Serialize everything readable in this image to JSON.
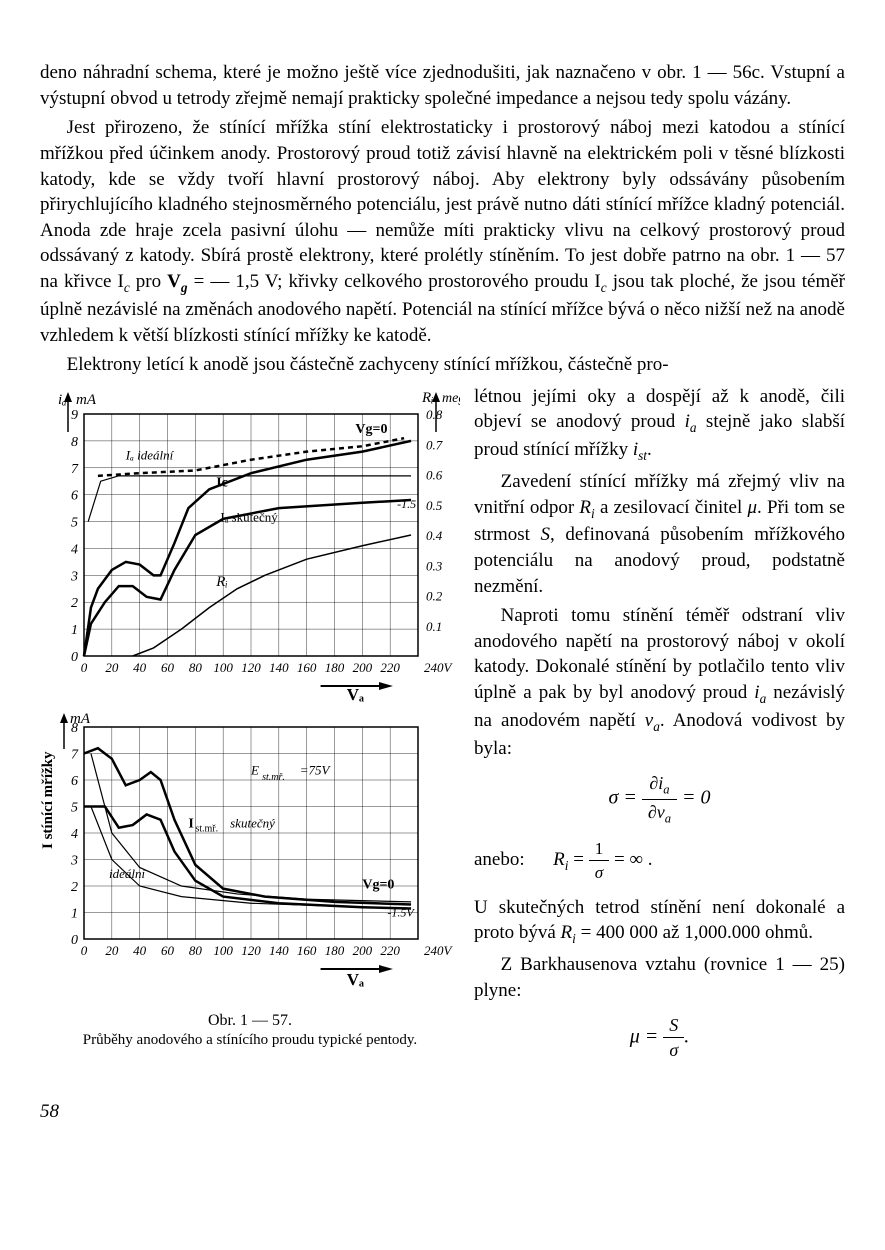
{
  "body": {
    "p1": "deno náhradní schema, které je možno ještě více zjednodušiti, jak naznačeno v obr. 1 — 56c. Vstupní a výstupní obvod u tetrody zřejmě nemají prakticky společné impedance a nejsou tedy spolu vázány.",
    "p2a": "Jest přirozeno, že stínící mřížka stíní elektrostaticky i prostorový náboj mezi katodou a stínící mřížkou před účinkem anody. Prostorový proud totiž závisí hlavně na elektrickém poli v těsné blízkosti katody, kde se vždy tvoří hlavní prostorový náboj. Aby elektrony byly odssávány působením přirychlujícího kladného stejnosměrného potenciálu, jest právě nutno dáti stínící mřížce kladný potenciál. Anoda zde hraje zcela pasivní úlohu — nemůže míti prakticky vlivu na celkový prostorový proud odssávaný z katody. Sbírá prostě elektrony, které prolétly stíněním. To jest dobře patrno na obr. 1 — 57 na křivce I",
    "p2b": " pro ",
    "p2c": " = — 1,5 V; křivky celkového prostorového proudu I",
    "p2d": " jsou tak ploché, že jsou téměř úplně nezávislé na změnách anodového napětí. Potenciál na stínící mřížce bývá o něco nižší než na anodě vzhledem k větší blízkosti stínící mřížky ke katodě.",
    "p3": "Elektrony letící k anodě jsou částečně zachyceny stínící mřížkou, částečně pro-",
    "r1a": "létnou jejími oky a dospějí až k anodě, čili objeví se anodový proud ",
    "r1b": " stejně jako slabší proud stínící mřížky ",
    "r2a": "Zavedení stínící mřížky má zřejmý vliv na vnitřní odpor ",
    "r2b": " a zesilovací činitel ",
    "r2c": ". Při tom se strmost ",
    "r2d": ", definovaná působením mřížkového potenciálu na anodový proud, podstatně nezmění.",
    "r3a": "Naproti tomu stínění téměř odstraní vliv anodového napětí na prostorový náboj v okolí katody. Dokonalé stínění by potlačilo tento vliv úplně a pak by byl anodový proud ",
    "r3b": " nezávislý na anodovém napětí ",
    "r3c": ". Anodová vodivost by byla:",
    "r4": "anebo:",
    "r5a": "U skutečných tetrod stínění není dokonalé a proto bývá ",
    "r5b": " = 400 000 až 1,000.000 ohmů.",
    "r6": "Z Barkhausenova vztahu (rovnice 1 — 25) plyne:"
  },
  "symbols": {
    "Ic": "c",
    "Vg": "g",
    "ia": "a",
    "ist": "st",
    "Ri": "i",
    "mu": "μ",
    "S": "S",
    "va": "a",
    "sigma": "σ"
  },
  "figure": {
    "caption_main": "Obr. 1 — 57.",
    "caption_sub": "Průběhy anodového a stínícího proudu typické pentody.",
    "top_chart": {
      "type": "line",
      "y_left_label": "mA",
      "y_left_prefix": "iₐ",
      "y_right_label": "meg",
      "y_right_prefix": "Rᵢ",
      "x_label": "Vₐ",
      "xlim": [
        0,
        240
      ],
      "x_ticks": [
        0,
        20,
        40,
        60,
        80,
        100,
        120,
        140,
        160,
        180,
        200,
        220
      ],
      "x_unit_end": "240V",
      "y_left_lim": [
        0,
        9
      ],
      "y_left_ticks": [
        0,
        1,
        2,
        3,
        4,
        5,
        6,
        7,
        8,
        9
      ],
      "y_right_lim": [
        0,
        0.8
      ],
      "y_right_ticks": [
        0.1,
        0.2,
        0.3,
        0.4,
        0.5,
        0.6,
        0.7,
        0.8
      ],
      "grid_color": "#000000",
      "background_color": "#ffffff",
      "line_width_heavy": 2.5,
      "line_width_med": 1.5,
      "annotations": [
        "Iₐ ideální",
        "Ic",
        "Iₐ skutečný",
        "Rᵢ",
        "Vg=0",
        "-1.5"
      ],
      "curves": {
        "Ia_skut_0": {
          "pts": [
            [
              0,
              0
            ],
            [
              5,
              1.8
            ],
            [
              10,
              2.5
            ],
            [
              20,
              3.2
            ],
            [
              30,
              3.5
            ],
            [
              40,
              3.4
            ],
            [
              50,
              3.0
            ],
            [
              55,
              3.0
            ],
            [
              65,
              4.2
            ],
            [
              75,
              5.5
            ],
            [
              90,
              6.2
            ],
            [
              120,
              6.8
            ],
            [
              160,
              7.3
            ],
            [
              200,
              7.6
            ],
            [
              235,
              8.0
            ]
          ],
          "w": 2.5
        },
        "Ia_skut_15": {
          "pts": [
            [
              0,
              0
            ],
            [
              5,
              1.2
            ],
            [
              15,
              2.0
            ],
            [
              25,
              2.6
            ],
            [
              35,
              2.6
            ],
            [
              45,
              2.2
            ],
            [
              55,
              2.1
            ],
            [
              65,
              3.2
            ],
            [
              80,
              4.5
            ],
            [
              100,
              5.1
            ],
            [
              140,
              5.5
            ],
            [
              200,
              5.7
            ],
            [
              235,
              5.8
            ]
          ],
          "w": 2.5
        },
        "Ic_0": {
          "pts": [
            [
              10,
              6.7
            ],
            [
              40,
              6.8
            ],
            [
              80,
              6.9
            ],
            [
              120,
              7.3
            ],
            [
              160,
              7.6
            ],
            [
              200,
              7.8
            ],
            [
              230,
              8.1
            ]
          ],
          "w": 2.5,
          "dash": "5,4"
        },
        "Ia_ideal": {
          "pts": [
            [
              3,
              5.0
            ],
            [
              12,
              6.5
            ],
            [
              25,
              6.7
            ],
            [
              60,
              6.7
            ],
            [
              120,
              6.7
            ],
            [
              200,
              6.7
            ],
            [
              235,
              6.7
            ]
          ],
          "w": 1.2
        },
        "Ri": {
          "pts": [
            [
              35,
              0
            ],
            [
              50,
              0.3
            ],
            [
              70,
              1.0
            ],
            [
              90,
              1.8
            ],
            [
              110,
              2.5
            ],
            [
              130,
              3.0
            ],
            [
              160,
              3.6
            ],
            [
              200,
              4.1
            ],
            [
              235,
              4.5
            ]
          ],
          "w": 1.5
        }
      }
    },
    "bottom_chart": {
      "type": "line",
      "y_label": "mA",
      "y_side_label": "I stínící mřížky",
      "x_label": "Vₐ",
      "xlim": [
        0,
        240
      ],
      "x_ticks": [
        0,
        20,
        40,
        60,
        80,
        100,
        120,
        140,
        160,
        180,
        200,
        220
      ],
      "x_unit_end": "240V",
      "ylim": [
        0,
        8
      ],
      "y_ticks": [
        0,
        1,
        2,
        3,
        4,
        5,
        6,
        7,
        8
      ],
      "line_width_heavy": 2.5,
      "annotations": [
        "E_st.mř.=75V",
        "I_st.mř. skutečný",
        "ideální",
        "Vg=0",
        "-1.5V"
      ],
      "curves": {
        "Ist_skut_0": {
          "pts": [
            [
              0,
              7.0
            ],
            [
              10,
              7.2
            ],
            [
              20,
              6.8
            ],
            [
              30,
              5.8
            ],
            [
              40,
              6.0
            ],
            [
              48,
              6.3
            ],
            [
              55,
              6.0
            ],
            [
              65,
              4.5
            ],
            [
              80,
              2.8
            ],
            [
              100,
              1.9
            ],
            [
              130,
              1.6
            ],
            [
              180,
              1.4
            ],
            [
              235,
              1.3
            ]
          ],
          "w": 2.5
        },
        "Ist_skut_15": {
          "pts": [
            [
              0,
              5.0
            ],
            [
              15,
              5.0
            ],
            [
              25,
              4.2
            ],
            [
              35,
              4.3
            ],
            [
              45,
              4.7
            ],
            [
              55,
              4.5
            ],
            [
              65,
              3.3
            ],
            [
              80,
              2.2
            ],
            [
              100,
              1.6
            ],
            [
              140,
              1.35
            ],
            [
              200,
              1.2
            ],
            [
              235,
              1.15
            ]
          ],
          "w": 2.5
        },
        "Ist_ideal_0": {
          "pts": [
            [
              5,
              7.0
            ],
            [
              20,
              4.0
            ],
            [
              40,
              2.7
            ],
            [
              70,
              2.0
            ],
            [
              110,
              1.7
            ],
            [
              160,
              1.5
            ],
            [
              235,
              1.4
            ]
          ],
          "w": 1.2
        },
        "Ist_ideal_15": {
          "pts": [
            [
              5,
              5.0
            ],
            [
              20,
              3.0
            ],
            [
              40,
              2.0
            ],
            [
              70,
              1.6
            ],
            [
              120,
              1.35
            ],
            [
              200,
              1.2
            ],
            [
              235,
              1.15
            ]
          ],
          "w": 1.2
        }
      }
    }
  },
  "page_number": "58"
}
